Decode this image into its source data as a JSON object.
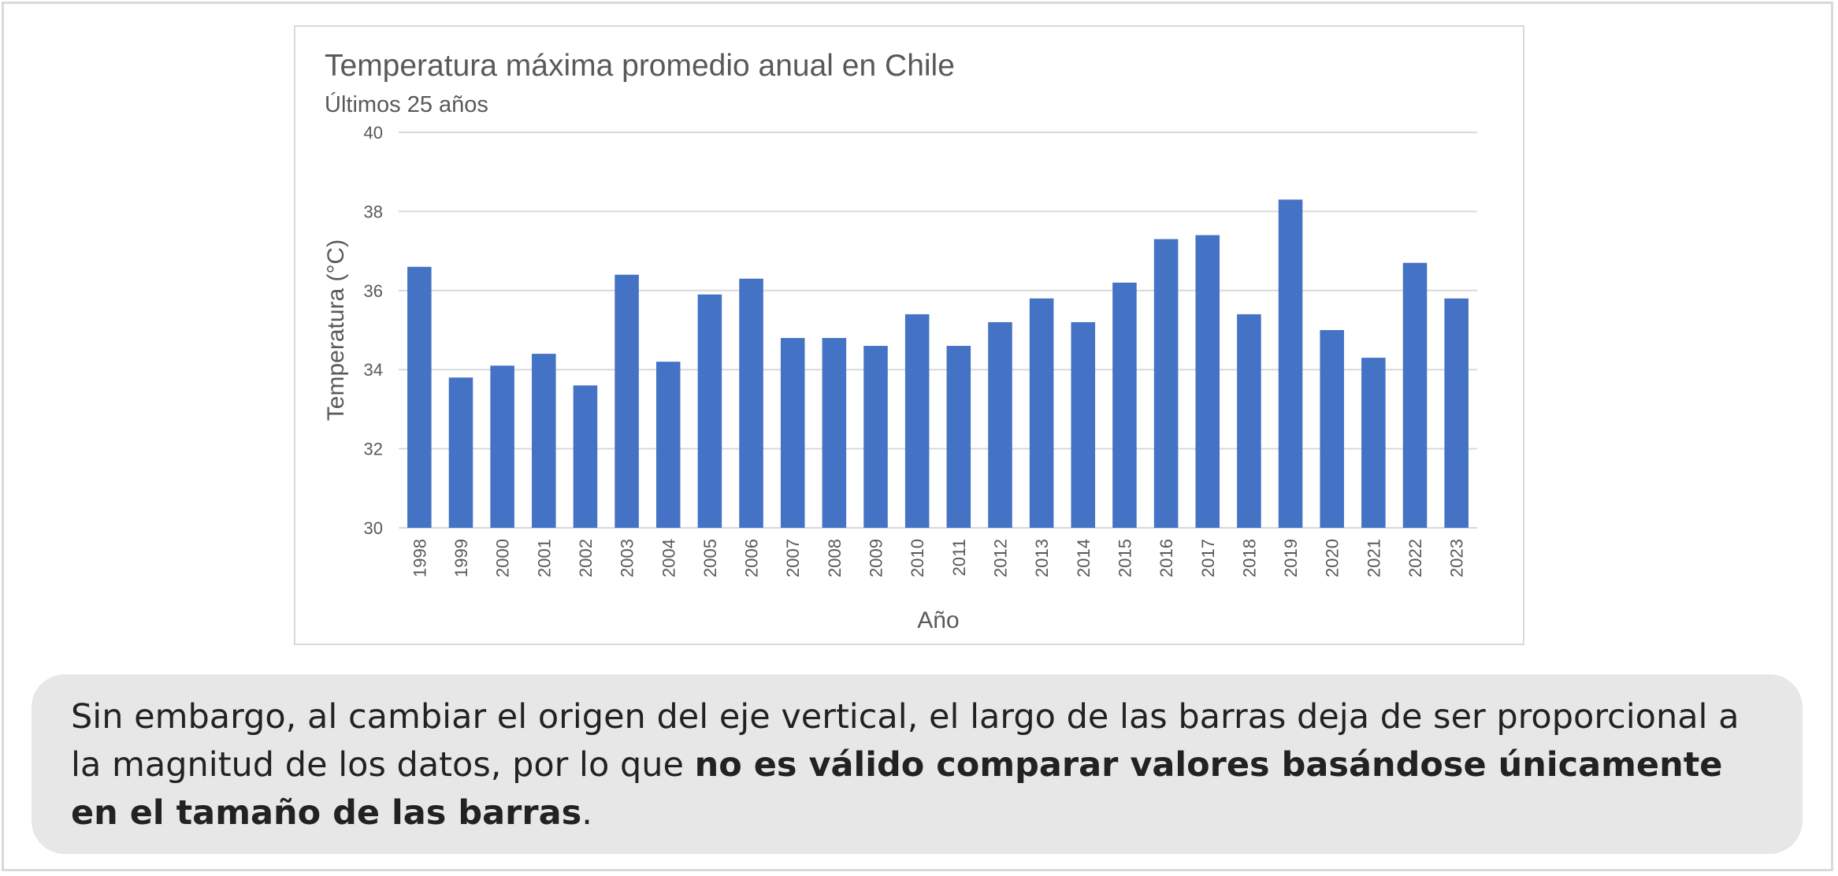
{
  "chart_data": {
    "type": "bar",
    "title": "Temperatura máxima promedio anual en Chile",
    "subtitle": "Últimos 25 años",
    "xlabel": "Año",
    "ylabel": "Temperatura (°C)",
    "ylim": [
      30,
      40
    ],
    "yticks": [
      30,
      32,
      34,
      36,
      38,
      40
    ],
    "grid": true,
    "bar_color": "#4472c4",
    "categories": [
      "1998",
      "1999",
      "2000",
      "2001",
      "2002",
      "2003",
      "2004",
      "2005",
      "2006",
      "2007",
      "2008",
      "2009",
      "2010",
      "2011",
      "2012",
      "2013",
      "2014",
      "2015",
      "2016",
      "2017",
      "2018",
      "2019",
      "2020",
      "2021",
      "2022",
      "2023"
    ],
    "values": [
      36.6,
      33.8,
      34.1,
      34.4,
      33.6,
      36.4,
      34.2,
      35.9,
      36.3,
      34.8,
      34.8,
      34.6,
      35.4,
      34.6,
      35.2,
      35.8,
      35.2,
      36.2,
      37.3,
      37.4,
      35.4,
      38.3,
      35.0,
      34.3,
      36.7,
      35.8
    ]
  },
  "callout": {
    "text_plain": "Sin embargo, al cambiar el origen del eje vertical, el largo de las barras deja de ser proporcional a la magnitud de los datos, por lo que ",
    "text_bold": "no es válido comparar valores basándose únicamente en el tamaño de las barras",
    "text_end": "."
  }
}
